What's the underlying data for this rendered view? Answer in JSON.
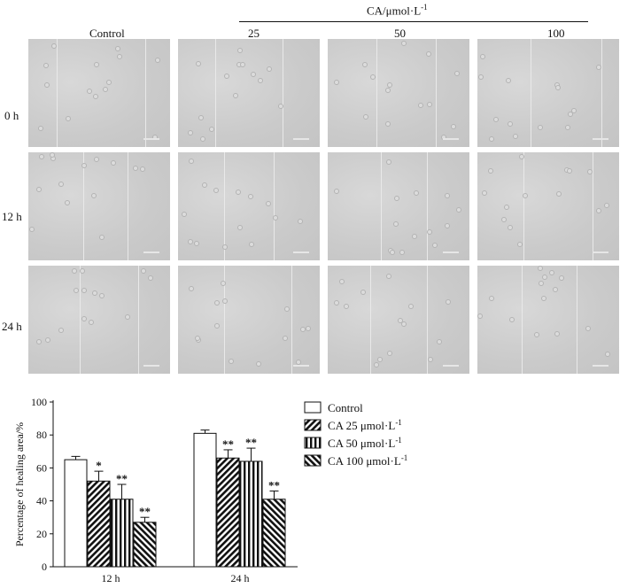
{
  "panel": {
    "column_labels": [
      "Control",
      "25",
      "50",
      "100"
    ],
    "group_label": "CA/μmol·L",
    "group_label_sup": "-1",
    "row_labels": [
      "0 h",
      "12 h",
      "24 h"
    ]
  },
  "chart_data": {
    "type": "bar",
    "categories": [
      "12 h",
      "24 h"
    ],
    "ylabel": "Percentage of healing area/%",
    "xlabel": "",
    "ylim": [
      0,
      100
    ],
    "yticks": [
      0,
      20,
      40,
      60,
      80,
      100
    ],
    "legend_position": "top-right",
    "series": [
      {
        "name": "Control",
        "values": [
          65,
          81
        ],
        "errors": [
          2,
          2
        ],
        "significance": [
          "",
          ""
        ],
        "pattern": "white"
      },
      {
        "name": "CA 25 μmol·L",
        "name_sup": "-1",
        "values": [
          52,
          66
        ],
        "errors": [
          6,
          5
        ],
        "significance": [
          "*",
          "**"
        ],
        "pattern": "diagonal-right"
      },
      {
        "name": "CA 50 μmol·L",
        "name_sup": "-1",
        "values": [
          41,
          64
        ],
        "errors": [
          9,
          8
        ],
        "significance": [
          "**",
          "**"
        ],
        "pattern": "vertical"
      },
      {
        "name": "CA 100 μmol·L",
        "name_sup": "-1",
        "values": [
          27,
          41
        ],
        "errors": [
          3,
          5
        ],
        "significance": [
          "**",
          "**"
        ],
        "pattern": "diagonal-left"
      }
    ]
  }
}
